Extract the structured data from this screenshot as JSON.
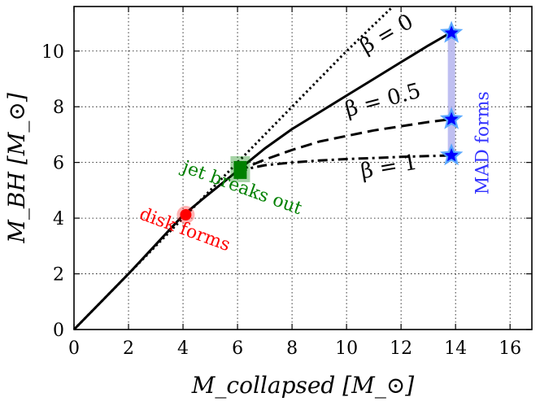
{
  "chart_data": {
    "type": "line",
    "xlabel": "M_collapsed [M_⊙]",
    "ylabel": "M_BH [M_⊙]",
    "xlim": [
      0,
      16.8
    ],
    "ylim": [
      0,
      11.6
    ],
    "grid": true,
    "x_ticks": [
      "0",
      "2",
      "4",
      "6",
      "8",
      "10",
      "12",
      "14",
      "16"
    ],
    "y_ticks": [
      "0",
      "2",
      "4",
      "6",
      "8",
      "10"
    ],
    "series": [
      {
        "name": "",
        "style": "dotted",
        "x": [
          0,
          2,
          4,
          6,
          8,
          10,
          11.7
        ],
        "y": [
          0,
          2,
          4,
          6,
          8,
          10,
          11.6
        ]
      },
      {
        "name": "β = 0",
        "style": "solid",
        "x": [
          0,
          2,
          4,
          4.8,
          5.5,
          6,
          6.5,
          7,
          8,
          9,
          10,
          11,
          12,
          13,
          13.8
        ],
        "y": [
          0,
          2,
          4.1,
          4.75,
          5.3,
          5.7,
          6.1,
          6.5,
          7.2,
          7.8,
          8.4,
          9.0,
          9.6,
          10.2,
          10.65
        ]
      },
      {
        "name": "β = 0.5",
        "style": "dashed",
        "x": [
          6,
          6.5,
          7,
          8,
          9,
          10,
          11,
          12,
          13,
          13.8
        ],
        "y": [
          5.65,
          5.9,
          6.1,
          6.45,
          6.75,
          6.95,
          7.15,
          7.3,
          7.45,
          7.55
        ]
      },
      {
        "name": "β = 1",
        "style": "dashdot",
        "x": [
          6,
          6.5,
          7,
          8,
          9,
          10,
          11,
          12,
          13,
          13.8
        ],
        "y": [
          5.65,
          5.8,
          5.9,
          6.0,
          6.07,
          6.12,
          6.16,
          6.2,
          6.23,
          6.25
        ]
      }
    ],
    "markers": [
      {
        "name": "disk-forms-marker",
        "shape": "circle",
        "x": 4.1,
        "y": 4.12,
        "color": "#ff0000"
      },
      {
        "name": "jet-breaks-out-marker",
        "shape": "square",
        "x": 6.1,
        "y": 5.7,
        "color": "#008000"
      },
      {
        "name": "mad-star-beta-0",
        "shape": "star",
        "x": 13.85,
        "y": 10.65,
        "color": "#0000ff"
      },
      {
        "name": "mad-star-beta-0.5",
        "shape": "star",
        "x": 13.85,
        "y": 7.55,
        "color": "#0000ff"
      },
      {
        "name": "mad-star-beta-1",
        "shape": "star",
        "x": 13.85,
        "y": 6.25,
        "color": "#0000ff"
      }
    ],
    "mad_band": {
      "x": 13.85,
      "y0": 6.25,
      "y1": 10.65,
      "color": "#b0b0ee"
    },
    "annotations": [
      {
        "name": "label-beta-0",
        "text": "β = 0",
        "x": 11.6,
        "y": 10.4,
        "angle": -30,
        "color": "#000000"
      },
      {
        "name": "label-beta-0.5",
        "text": "β = 0.5",
        "x": 11.4,
        "y": 8.0,
        "angle": -15,
        "color": "#000000"
      },
      {
        "name": "label-beta-1",
        "text": "β = 1",
        "x": 11.6,
        "y": 5.6,
        "angle": -10,
        "color": "#000000"
      },
      {
        "name": "label-disk-forms",
        "text": "disk forms",
        "x": 4.0,
        "y": 3.4,
        "angle": 20,
        "color": "#ff0000"
      },
      {
        "name": "label-jet-breaks-out",
        "text": "jet breaks out",
        "x": 6.1,
        "y": 4.9,
        "angle": 20,
        "color": "#008000"
      },
      {
        "name": "label-mad-forms",
        "text": "MAD forms",
        "x": 15.2,
        "y": 6.7,
        "angle": -90,
        "color": "#3333ff"
      }
    ]
  }
}
